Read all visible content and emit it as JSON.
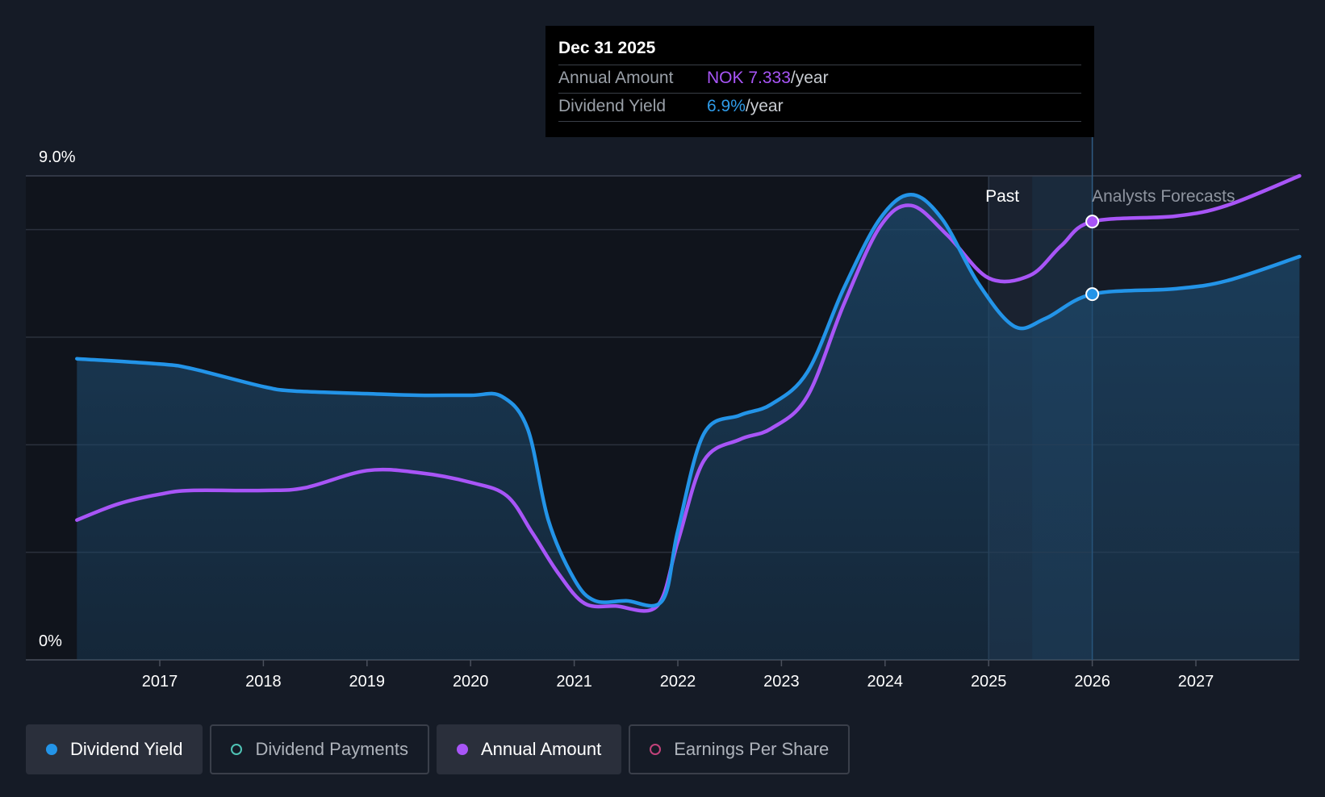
{
  "chart_data": {
    "type": "line",
    "title": "",
    "xlabel": "",
    "ylabel": "",
    "x_ticks": [
      "2017",
      "2018",
      "2019",
      "2020",
      "2021",
      "2022",
      "2023",
      "2024",
      "2025",
      "2026",
      "2027"
    ],
    "y_tick_labels": [
      {
        "value": 9.0,
        "label": "9.0%"
      },
      {
        "value": 0,
        "label": "0%"
      }
    ],
    "ylim": [
      0,
      9.0
    ],
    "xlim": [
      2016.2,
      2028.0
    ],
    "grid": true,
    "regions": {
      "past_label": "Past",
      "forecast_label": "Analysts Forecasts",
      "past_start": 2025.0,
      "forecast_start": 2025.42,
      "marker_date": 2026.0
    },
    "series": [
      {
        "name": "Dividend Yield",
        "color": "#2394e8",
        "points": [
          [
            2016.2,
            5.6
          ],
          [
            2017.0,
            5.5
          ],
          [
            2017.3,
            5.42
          ],
          [
            2018.0,
            5.08
          ],
          [
            2018.3,
            5.0
          ],
          [
            2019.0,
            4.95
          ],
          [
            2019.5,
            4.92
          ],
          [
            2020.0,
            4.92
          ],
          [
            2020.3,
            4.9
          ],
          [
            2020.55,
            4.3
          ],
          [
            2020.75,
            2.6
          ],
          [
            2021.0,
            1.5
          ],
          [
            2021.2,
            1.1
          ],
          [
            2021.5,
            1.1
          ],
          [
            2021.85,
            1.1
          ],
          [
            2022.0,
            2.4
          ],
          [
            2022.25,
            4.2
          ],
          [
            2022.6,
            4.55
          ],
          [
            2022.9,
            4.75
          ],
          [
            2023.25,
            5.35
          ],
          [
            2023.6,
            6.9
          ],
          [
            2023.95,
            8.2
          ],
          [
            2024.25,
            8.65
          ],
          [
            2024.55,
            8.2
          ],
          [
            2024.9,
            7.0
          ],
          [
            2025.25,
            6.2
          ],
          [
            2025.55,
            6.35
          ],
          [
            2026.0,
            6.8
          ],
          [
            2026.8,
            6.9
          ],
          [
            2027.3,
            7.05
          ],
          [
            2028.0,
            7.5
          ]
        ]
      },
      {
        "name": "Annual Amount",
        "color": "#a855f7",
        "points": [
          [
            2016.2,
            2.6
          ],
          [
            2016.6,
            2.9
          ],
          [
            2017.0,
            3.08
          ],
          [
            2017.3,
            3.15
          ],
          [
            2018.0,
            3.15
          ],
          [
            2018.4,
            3.2
          ],
          [
            2019.0,
            3.52
          ],
          [
            2019.5,
            3.48
          ],
          [
            2020.0,
            3.3
          ],
          [
            2020.35,
            3.05
          ],
          [
            2020.6,
            2.35
          ],
          [
            2020.85,
            1.6
          ],
          [
            2021.1,
            1.05
          ],
          [
            2021.4,
            1.0
          ],
          [
            2021.8,
            1.0
          ],
          [
            2022.0,
            2.2
          ],
          [
            2022.25,
            3.7
          ],
          [
            2022.6,
            4.1
          ],
          [
            2022.9,
            4.3
          ],
          [
            2023.25,
            4.9
          ],
          [
            2023.6,
            6.6
          ],
          [
            2023.95,
            8.05
          ],
          [
            2024.25,
            8.45
          ],
          [
            2024.6,
            7.9
          ],
          [
            2025.0,
            7.1
          ],
          [
            2025.4,
            7.15
          ],
          [
            2025.7,
            7.7
          ],
          [
            2026.0,
            8.15
          ],
          [
            2026.8,
            8.25
          ],
          [
            2027.3,
            8.45
          ],
          [
            2028.0,
            9.0
          ]
        ]
      }
    ],
    "tooltip": {
      "date": "Dec 31 2025",
      "rows": [
        {
          "label": "Annual Amount",
          "value": "NOK 7.333",
          "unit": "/year"
        },
        {
          "label": "Dividend Yield",
          "value": "6.9%",
          "unit": "/year"
        }
      ]
    }
  },
  "legend": {
    "items": [
      {
        "label": "Dividend Yield",
        "state": "active"
      },
      {
        "label": "Dividend Payments",
        "state": "inactive"
      },
      {
        "label": "Annual Amount",
        "state": "active"
      },
      {
        "label": "Earnings Per Share",
        "state": "inactive"
      }
    ]
  }
}
